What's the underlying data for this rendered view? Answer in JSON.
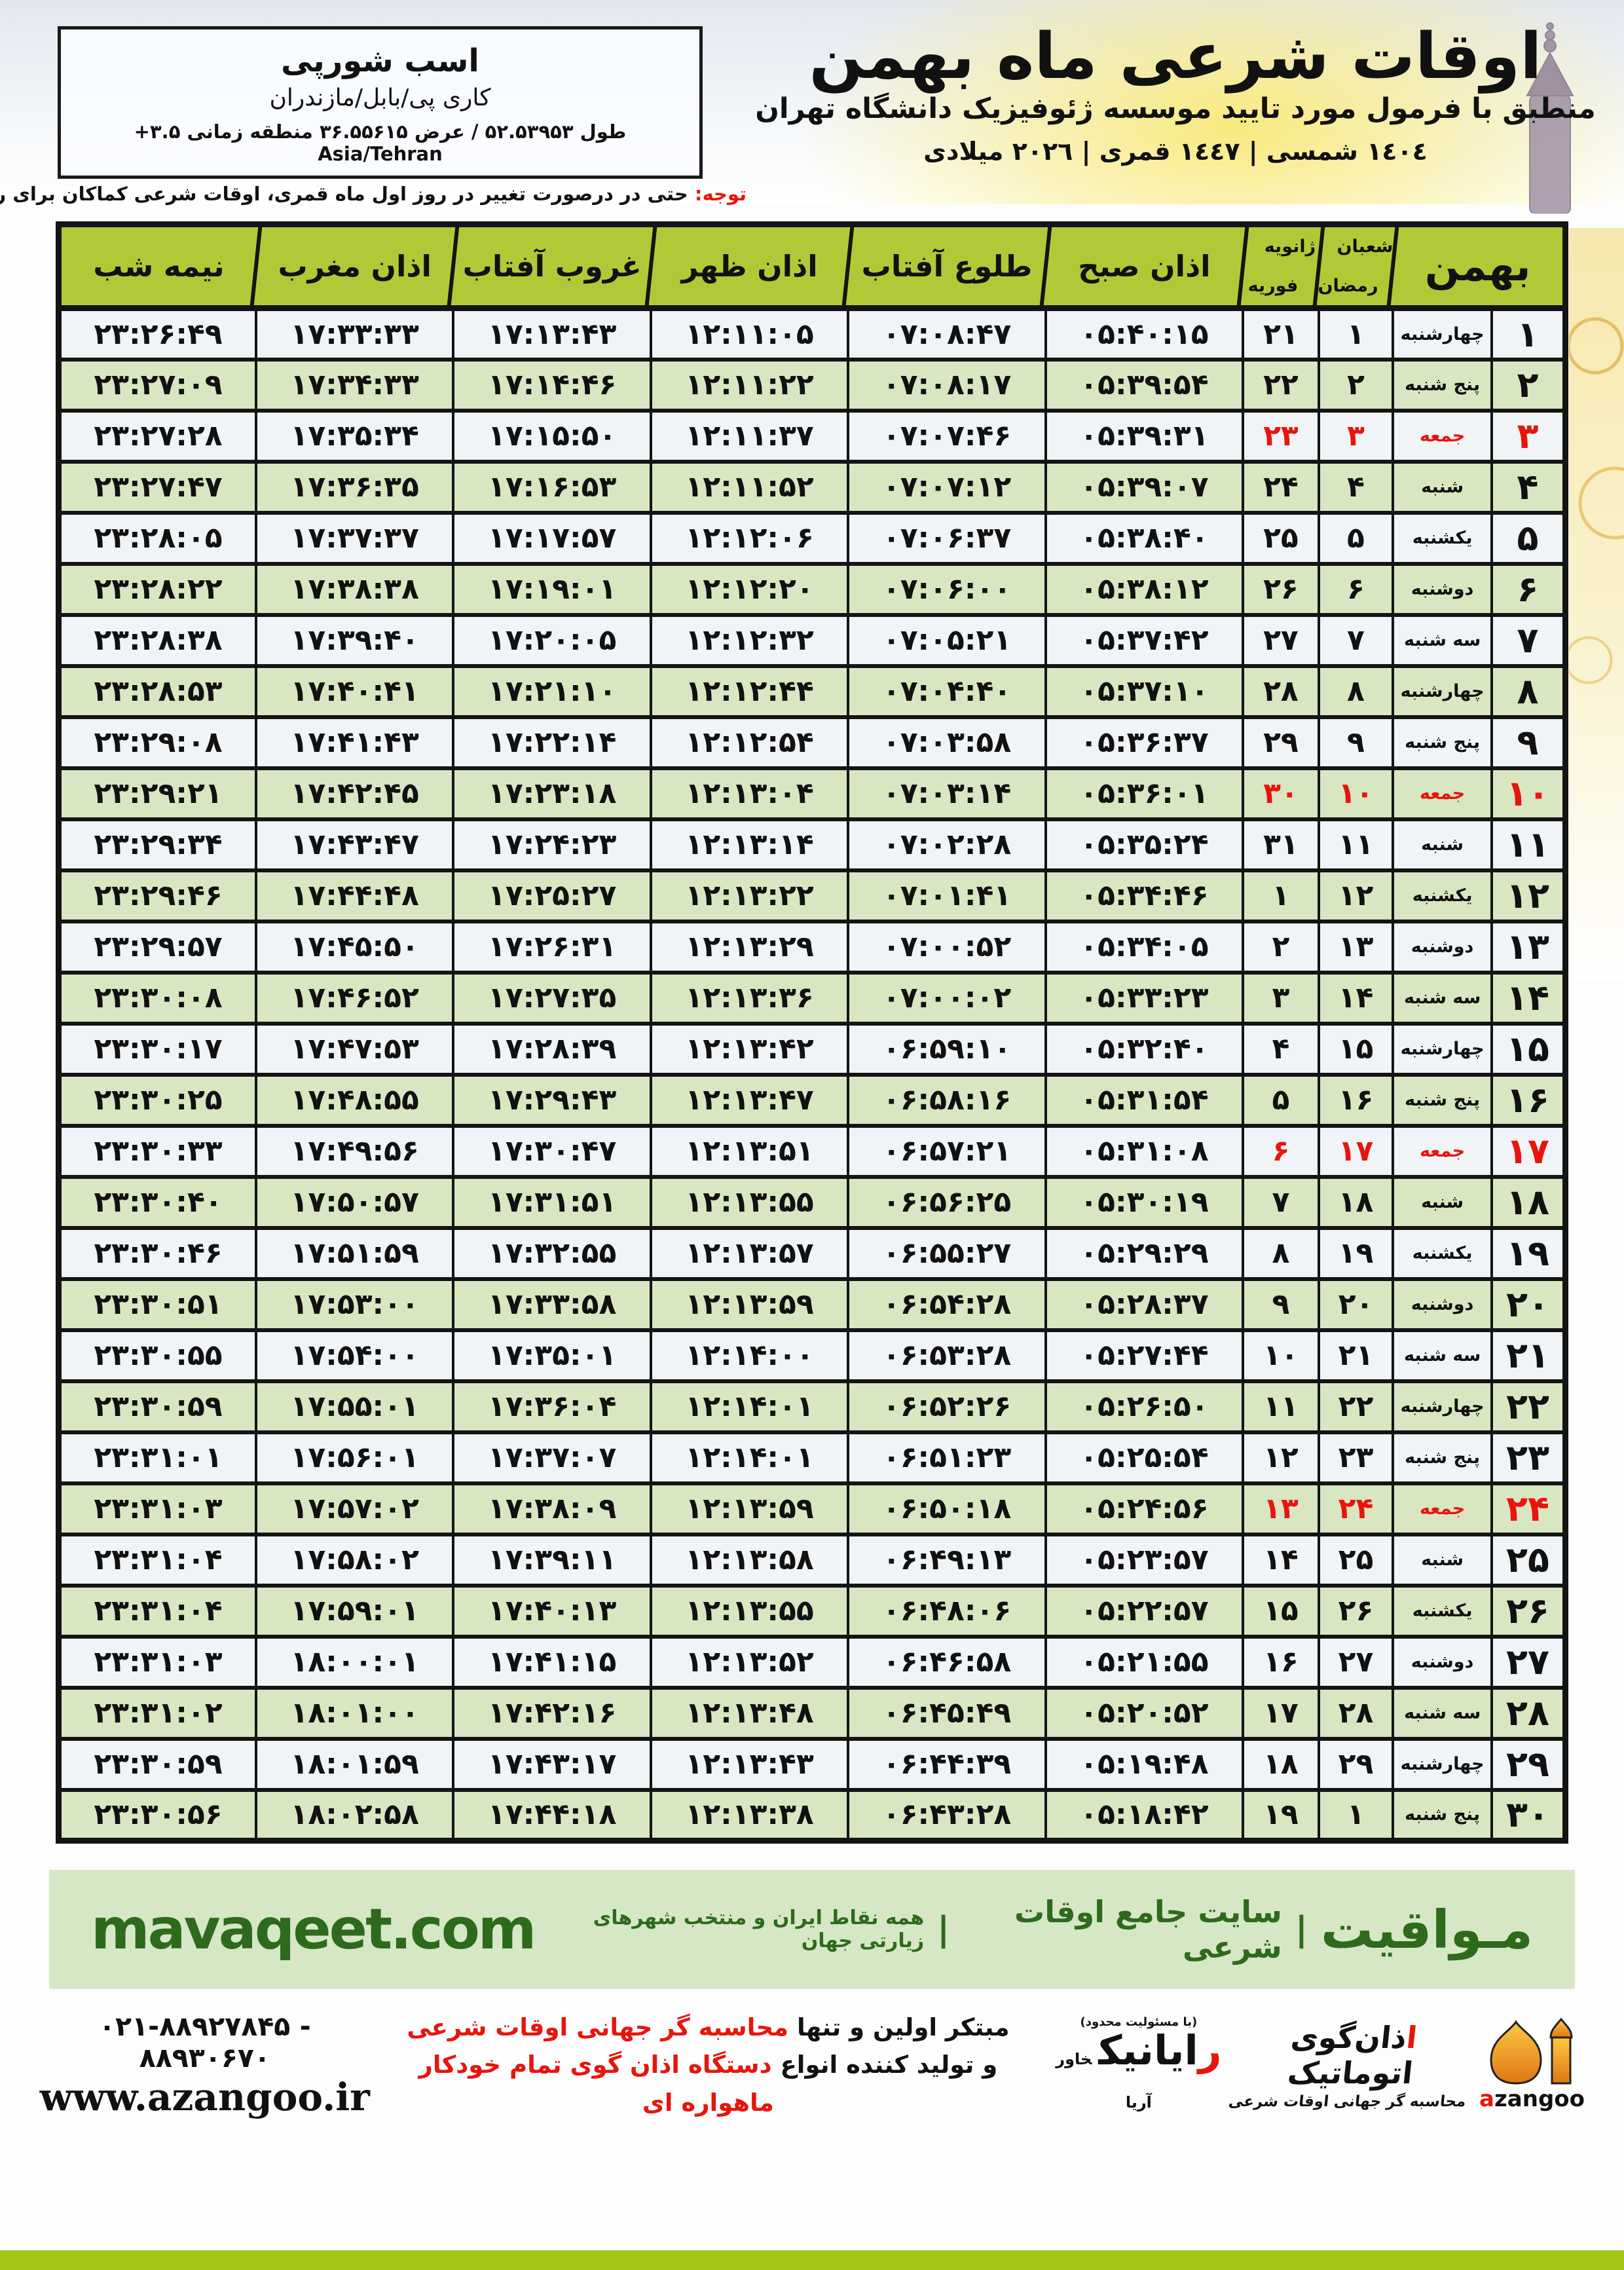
{
  "header": {
    "title": "اوقات شرعی ماه بهمن",
    "subtitle": "منطبق با فرمول مورد تایید موسسه ژئوفیزیک دانشگاه تهران",
    "years": "١٤٠٤ شمسی | ١٤٤٧ قمری | ٢٠٢٦ میلادی"
  },
  "location_box": {
    "name": "اسب شورپی",
    "region": "کاری پی/بابل/مازندران",
    "coords": "طول ۵۲.۵۳۹۵۳ / عرض ۳۶.۵۵۶۱۵ منطقه زمانی ‎+۳.۵ Asia/Tehran"
  },
  "notice": {
    "label": "توجه:",
    "text": " حتی در درصورت تغییر در روز اول ماه قمری، اوقات شرعی کماکان برای روزهای شمسی و میلادی معتبر است."
  },
  "table": {
    "month_header": "بهمن",
    "hijri_header_top": "شعبان",
    "hijri_header_bottom": "رمضان",
    "greg_header_top": "ژانویه",
    "greg_header_bottom": "فوریه",
    "col_fajr": "اذان صبح",
    "col_sunrise": "طلوع آفتاب",
    "col_noon": "اذان ظهر",
    "col_sunset": "غروب آفتاب",
    "col_maghrib": "اذان مغرب",
    "col_midnight": "نیمه شب",
    "rows": [
      {
        "day": "۱",
        "weekday": "چهارشنبه",
        "hijri": "۱",
        "greg": "۲۱",
        "fajr": "۰۵:۴۰:۱۵",
        "sunrise": "۰۷:۰۸:۴۷",
        "noon": "۱۲:۱۱:۰۵",
        "sunset": "۱۷:۱۳:۴۳",
        "maghrib": "۱۷:۳۳:۳۳",
        "midnight": "۲۳:۲۶:۴۹",
        "friday": false
      },
      {
        "day": "۲",
        "weekday": "پنج شنبه",
        "hijri": "۲",
        "greg": "۲۲",
        "fajr": "۰۵:۳۹:۵۴",
        "sunrise": "۰۷:۰۸:۱۷",
        "noon": "۱۲:۱۱:۲۲",
        "sunset": "۱۷:۱۴:۴۶",
        "maghrib": "۱۷:۳۴:۳۳",
        "midnight": "۲۳:۲۷:۰۹",
        "friday": false
      },
      {
        "day": "۳",
        "weekday": "جمعه",
        "hijri": "۳",
        "greg": "۲۳",
        "fajr": "۰۵:۳۹:۳۱",
        "sunrise": "۰۷:۰۷:۴۶",
        "noon": "۱۲:۱۱:۳۷",
        "sunset": "۱۷:۱۵:۵۰",
        "maghrib": "۱۷:۳۵:۳۴",
        "midnight": "۲۳:۲۷:۲۸",
        "friday": true
      },
      {
        "day": "۴",
        "weekday": "شنبه",
        "hijri": "۴",
        "greg": "۲۴",
        "fajr": "۰۵:۳۹:۰۷",
        "sunrise": "۰۷:۰۷:۱۲",
        "noon": "۱۲:۱۱:۵۲",
        "sunset": "۱۷:۱۶:۵۳",
        "maghrib": "۱۷:۳۶:۳۵",
        "midnight": "۲۳:۲۷:۴۷",
        "friday": false
      },
      {
        "day": "۵",
        "weekday": "یکشنبه",
        "hijri": "۵",
        "greg": "۲۵",
        "fajr": "۰۵:۳۸:۴۰",
        "sunrise": "۰۷:۰۶:۳۷",
        "noon": "۱۲:۱۲:۰۶",
        "sunset": "۱۷:۱۷:۵۷",
        "maghrib": "۱۷:۳۷:۳۷",
        "midnight": "۲۳:۲۸:۰۵",
        "friday": false
      },
      {
        "day": "۶",
        "weekday": "دوشنبه",
        "hijri": "۶",
        "greg": "۲۶",
        "fajr": "۰۵:۳۸:۱۲",
        "sunrise": "۰۷:۰۶:۰۰",
        "noon": "۱۲:۱۲:۲۰",
        "sunset": "۱۷:۱۹:۰۱",
        "maghrib": "۱۷:۳۸:۳۸",
        "midnight": "۲۳:۲۸:۲۲",
        "friday": false
      },
      {
        "day": "۷",
        "weekday": "سه شنبه",
        "hijri": "۷",
        "greg": "۲۷",
        "fajr": "۰۵:۳۷:۴۲",
        "sunrise": "۰۷:۰۵:۲۱",
        "noon": "۱۲:۱۲:۳۲",
        "sunset": "۱۷:۲۰:۰۵",
        "maghrib": "۱۷:۳۹:۴۰",
        "midnight": "۲۳:۲۸:۳۸",
        "friday": false
      },
      {
        "day": "۸",
        "weekday": "چهارشنبه",
        "hijri": "۸",
        "greg": "۲۸",
        "fajr": "۰۵:۳۷:۱۰",
        "sunrise": "۰۷:۰۴:۴۰",
        "noon": "۱۲:۱۲:۴۴",
        "sunset": "۱۷:۲۱:۱۰",
        "maghrib": "۱۷:۴۰:۴۱",
        "midnight": "۲۳:۲۸:۵۳",
        "friday": false
      },
      {
        "day": "۹",
        "weekday": "پنج شنبه",
        "hijri": "۹",
        "greg": "۲۹",
        "fajr": "۰۵:۳۶:۳۷",
        "sunrise": "۰۷:۰۳:۵۸",
        "noon": "۱۲:۱۲:۵۴",
        "sunset": "۱۷:۲۲:۱۴",
        "maghrib": "۱۷:۴۱:۴۳",
        "midnight": "۲۳:۲۹:۰۸",
        "friday": false
      },
      {
        "day": "۱۰",
        "weekday": "جمعه",
        "hijri": "۱۰",
        "greg": "۳۰",
        "fajr": "۰۵:۳۶:۰۱",
        "sunrise": "۰۷:۰۳:۱۴",
        "noon": "۱۲:۱۳:۰۴",
        "sunset": "۱۷:۲۳:۱۸",
        "maghrib": "۱۷:۴۲:۴۵",
        "midnight": "۲۳:۲۹:۲۱",
        "friday": true
      },
      {
        "day": "۱۱",
        "weekday": "شنبه",
        "hijri": "۱۱",
        "greg": "۳۱",
        "fajr": "۰۵:۳۵:۲۴",
        "sunrise": "۰۷:۰۲:۲۸",
        "noon": "۱۲:۱۳:۱۴",
        "sunset": "۱۷:۲۴:۲۳",
        "maghrib": "۱۷:۴۳:۴۷",
        "midnight": "۲۳:۲۹:۳۴",
        "friday": false
      },
      {
        "day": "۱۲",
        "weekday": "یکشنبه",
        "hijri": "۱۲",
        "greg": "۱",
        "fajr": "۰۵:۳۴:۴۶",
        "sunrise": "۰۷:۰۱:۴۱",
        "noon": "۱۲:۱۳:۲۲",
        "sunset": "۱۷:۲۵:۲۷",
        "maghrib": "۱۷:۴۴:۴۸",
        "midnight": "۲۳:۲۹:۴۶",
        "friday": false
      },
      {
        "day": "۱۳",
        "weekday": "دوشنبه",
        "hijri": "۱۳",
        "greg": "۲",
        "fajr": "۰۵:۳۴:۰۵",
        "sunrise": "۰۷:۰۰:۵۲",
        "noon": "۱۲:۱۳:۲۹",
        "sunset": "۱۷:۲۶:۳۱",
        "maghrib": "۱۷:۴۵:۵۰",
        "midnight": "۲۳:۲۹:۵۷",
        "friday": false
      },
      {
        "day": "۱۴",
        "weekday": "سه شنبه",
        "hijri": "۱۴",
        "greg": "۳",
        "fajr": "۰۵:۳۳:۲۳",
        "sunrise": "۰۷:۰۰:۰۲",
        "noon": "۱۲:۱۳:۳۶",
        "sunset": "۱۷:۲۷:۳۵",
        "maghrib": "۱۷:۴۶:۵۲",
        "midnight": "۲۳:۳۰:۰۸",
        "friday": false
      },
      {
        "day": "۱۵",
        "weekday": "چهارشنبه",
        "hijri": "۱۵",
        "greg": "۴",
        "fajr": "۰۵:۳۲:۴۰",
        "sunrise": "۰۶:۵۹:۱۰",
        "noon": "۱۲:۱۳:۴۲",
        "sunset": "۱۷:۲۸:۳۹",
        "maghrib": "۱۷:۴۷:۵۳",
        "midnight": "۲۳:۳۰:۱۷",
        "friday": false
      },
      {
        "day": "۱۶",
        "weekday": "پنج شنبه",
        "hijri": "۱۶",
        "greg": "۵",
        "fajr": "۰۵:۳۱:۵۴",
        "sunrise": "۰۶:۵۸:۱۶",
        "noon": "۱۲:۱۳:۴۷",
        "sunset": "۱۷:۲۹:۴۳",
        "maghrib": "۱۷:۴۸:۵۵",
        "midnight": "۲۳:۳۰:۲۵",
        "friday": false
      },
      {
        "day": "۱۷",
        "weekday": "جمعه",
        "hijri": "۱۷",
        "greg": "۶",
        "fajr": "۰۵:۳۱:۰۸",
        "sunrise": "۰۶:۵۷:۲۱",
        "noon": "۱۲:۱۳:۵۱",
        "sunset": "۱۷:۳۰:۴۷",
        "maghrib": "۱۷:۴۹:۵۶",
        "midnight": "۲۳:۳۰:۳۳",
        "friday": true
      },
      {
        "day": "۱۸",
        "weekday": "شنبه",
        "hijri": "۱۸",
        "greg": "۷",
        "fajr": "۰۵:۳۰:۱۹",
        "sunrise": "۰۶:۵۶:۲۵",
        "noon": "۱۲:۱۳:۵۵",
        "sunset": "۱۷:۳۱:۵۱",
        "maghrib": "۱۷:۵۰:۵۷",
        "midnight": "۲۳:۳۰:۴۰",
        "friday": false
      },
      {
        "day": "۱۹",
        "weekday": "یکشنبه",
        "hijri": "۱۹",
        "greg": "۸",
        "fajr": "۰۵:۲۹:۲۹",
        "sunrise": "۰۶:۵۵:۲۷",
        "noon": "۱۲:۱۳:۵۷",
        "sunset": "۱۷:۳۲:۵۵",
        "maghrib": "۱۷:۵۱:۵۹",
        "midnight": "۲۳:۳۰:۴۶",
        "friday": false
      },
      {
        "day": "۲۰",
        "weekday": "دوشنبه",
        "hijri": "۲۰",
        "greg": "۹",
        "fajr": "۰۵:۲۸:۳۷",
        "sunrise": "۰۶:۵۴:۲۸",
        "noon": "۱۲:۱۳:۵۹",
        "sunset": "۱۷:۳۳:۵۸",
        "maghrib": "۱۷:۵۳:۰۰",
        "midnight": "۲۳:۳۰:۵۱",
        "friday": false
      },
      {
        "day": "۲۱",
        "weekday": "سه شنبه",
        "hijri": "۲۱",
        "greg": "۱۰",
        "fajr": "۰۵:۲۷:۴۴",
        "sunrise": "۰۶:۵۳:۲۸",
        "noon": "۱۲:۱۴:۰۰",
        "sunset": "۱۷:۳۵:۰۱",
        "maghrib": "۱۷:۵۴:۰۰",
        "midnight": "۲۳:۳۰:۵۵",
        "friday": false
      },
      {
        "day": "۲۲",
        "weekday": "چهارشنبه",
        "hijri": "۲۲",
        "greg": "۱۱",
        "fajr": "۰۵:۲۶:۵۰",
        "sunrise": "۰۶:۵۲:۲۶",
        "noon": "۱۲:۱۴:۰۱",
        "sunset": "۱۷:۳۶:۰۴",
        "maghrib": "۱۷:۵۵:۰۱",
        "midnight": "۲۳:۳۰:۵۹",
        "friday": false
      },
      {
        "day": "۲۳",
        "weekday": "پنج شنبه",
        "hijri": "۲۳",
        "greg": "۱۲",
        "fajr": "۰۵:۲۵:۵۴",
        "sunrise": "۰۶:۵۱:۲۳",
        "noon": "۱۲:۱۴:۰۱",
        "sunset": "۱۷:۳۷:۰۷",
        "maghrib": "۱۷:۵۶:۰۱",
        "midnight": "۲۳:۳۱:۰۱",
        "friday": false
      },
      {
        "day": "۲۴",
        "weekday": "جمعه",
        "hijri": "۲۴",
        "greg": "۱۳",
        "fajr": "۰۵:۲۴:۵۶",
        "sunrise": "۰۶:۵۰:۱۸",
        "noon": "۱۲:۱۳:۵۹",
        "sunset": "۱۷:۳۸:۰۹",
        "maghrib": "۱۷:۵۷:۰۲",
        "midnight": "۲۳:۳۱:۰۳",
        "friday": true
      },
      {
        "day": "۲۵",
        "weekday": "شنبه",
        "hijri": "۲۵",
        "greg": "۱۴",
        "fajr": "۰۵:۲۳:۵۷",
        "sunrise": "۰۶:۴۹:۱۳",
        "noon": "۱۲:۱۳:۵۸",
        "sunset": "۱۷:۳۹:۱۱",
        "maghrib": "۱۷:۵۸:۰۲",
        "midnight": "۲۳:۳۱:۰۴",
        "friday": false
      },
      {
        "day": "۲۶",
        "weekday": "یکشنبه",
        "hijri": "۲۶",
        "greg": "۱۵",
        "fajr": "۰۵:۲۲:۵۷",
        "sunrise": "۰۶:۴۸:۰۶",
        "noon": "۱۲:۱۳:۵۵",
        "sunset": "۱۷:۴۰:۱۳",
        "maghrib": "۱۷:۵۹:۰۱",
        "midnight": "۲۳:۳۱:۰۴",
        "friday": false
      },
      {
        "day": "۲۷",
        "weekday": "دوشنبه",
        "hijri": "۲۷",
        "greg": "۱۶",
        "fajr": "۰۵:۲۱:۵۵",
        "sunrise": "۰۶:۴۶:۵۸",
        "noon": "۱۲:۱۳:۵۲",
        "sunset": "۱۷:۴۱:۱۵",
        "maghrib": "۱۸:۰۰:۰۱",
        "midnight": "۲۳:۳۱:۰۳",
        "friday": false
      },
      {
        "day": "۲۸",
        "weekday": "سه شنبه",
        "hijri": "۲۸",
        "greg": "۱۷",
        "fajr": "۰۵:۲۰:۵۲",
        "sunrise": "۰۶:۴۵:۴۹",
        "noon": "۱۲:۱۳:۴۸",
        "sunset": "۱۷:۴۲:۱۶",
        "maghrib": "۱۸:۰۱:۰۰",
        "midnight": "۲۳:۳۱:۰۲",
        "friday": false
      },
      {
        "day": "۲۹",
        "weekday": "چهارشنبه",
        "hijri": "۲۹",
        "greg": "۱۸",
        "fajr": "۰۵:۱۹:۴۸",
        "sunrise": "۰۶:۴۴:۳۹",
        "noon": "۱۲:۱۳:۴۳",
        "sunset": "۱۷:۴۳:۱۷",
        "maghrib": "۱۸:۰۱:۵۹",
        "midnight": "۲۳:۳۰:۵۹",
        "friday": false
      },
      {
        "day": "۳۰",
        "weekday": "پنج شنبه",
        "hijri": "۱",
        "greg": "۱۹",
        "fajr": "۰۵:۱۸:۴۲",
        "sunrise": "۰۶:۴۳:۲۸",
        "noon": "۱۲:۱۳:۳۸",
        "sunset": "۱۷:۴۴:۱۸",
        "maghrib": "۱۸:۰۲:۵۸",
        "midnight": "۲۳:۳۰:۵۶",
        "friday": false
      }
    ]
  },
  "banner": {
    "brand": "مـواقیت",
    "divider": "|",
    "site_title": "سایت جامع اوقات شرعی",
    "site_scope": "همه نقاط ایران و منتخب شهرهای زیارتی جهان",
    "url": "mavaqeet.com"
  },
  "footer": {
    "phones": "۰۲۱-۸۸۹۲۷۸۴۵ - ۸۸۹۳۰۶۷۰",
    "website": "www.azangoo.ir",
    "ad_line1_black": "مبتکر اولین و تنها ",
    "ad_line1_red": "محاسبه گر جهانی اوقات شرعی",
    "ad_line2_black": "و تولید کننده انواع ",
    "ad_line2_red": "دستگاه اذان گوی تمام خودکار ماهواره ای",
    "rayanik_note": "(با مسئولیت محدود)",
    "rayanik_name_initial": "ر",
    "rayanik_name_rest": "ایانیک",
    "rayanik_sub": "خاور آریا",
    "azangoo_fa_initial": "ا",
    "azangoo_fa_rest": "ذان‌گوی اتوماتیک",
    "azangoo_en_initial": "a",
    "azangoo_en_rest": "zangoo",
    "azangoo_tagline": "محاسبه گر جهانی اوقات شرعی"
  },
  "colors": {
    "header_green": "#b2c937",
    "row_green": "#d9e6c2",
    "row_light": "#f1f4f7",
    "friday_red": "#e8150d",
    "banner_bg": "#d6e7c5",
    "banner_text": "#2e6a1c",
    "bottom_bar": "#a3c516",
    "azangoo_orange": "#ef9210"
  }
}
